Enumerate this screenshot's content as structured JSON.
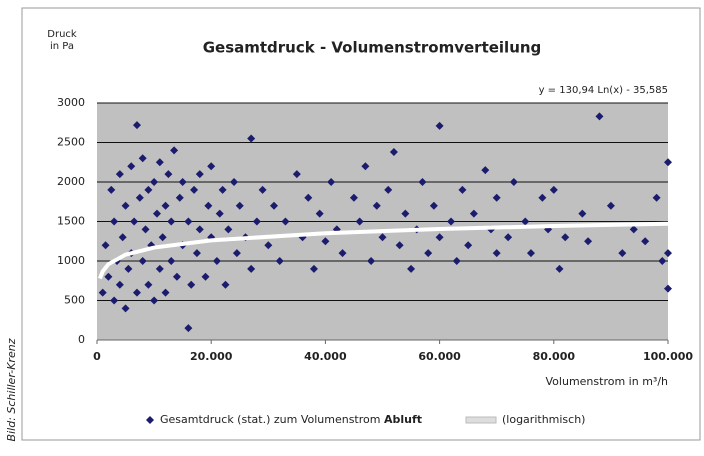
{
  "chart_data": {
    "type": "scatter",
    "title": "Gesamtdruck - Volumenstromverteilung",
    "y_label": [
      "Druck",
      "in Pa"
    ],
    "x_label": "Volumenstrom in m³/h",
    "annotation": "y = 130,94 Ln(x) - 35,585",
    "credit": "Bild: Schiller-Krenz",
    "xlim": [
      0,
      100000
    ],
    "ylim": [
      0,
      3000
    ],
    "xticks": [
      0,
      {
        "value": 20000,
        "label": "20.000"
      },
      {
        "value": 40000,
        "label": "40.000"
      },
      {
        "value": 60000,
        "label": "60.000"
      },
      {
        "value": 80000,
        "label": "80.000"
      },
      {
        "value": 100000,
        "label": "100.000"
      }
    ],
    "yticks": [
      0,
      500,
      1000,
      1500,
      2000,
      2500,
      3000
    ],
    "grid": true,
    "background": "#c0c0c0",
    "series": [
      {
        "name": "Gesamtdruck (stat.) zum Volumenstrom",
        "name_bold": "Abluft",
        "color": "#1c1c6e",
        "x": [
          1000,
          1500,
          2000,
          2500,
          3000,
          3000,
          3500,
          4000,
          4000,
          4500,
          5000,
          5000,
          5500,
          6000,
          6000,
          6500,
          7000,
          7000,
          7500,
          8000,
          8000,
          8500,
          9000,
          9000,
          9500,
          10000,
          10000,
          10500,
          11000,
          11000,
          11500,
          12000,
          12000,
          12500,
          13000,
          13000,
          13500,
          14000,
          14500,
          15000,
          15000,
          16000,
          16000,
          16500,
          17000,
          17500,
          18000,
          18000,
          19000,
          19500,
          20000,
          20000,
          21000,
          21500,
          22000,
          22500,
          23000,
          24000,
          24500,
          25000,
          26000,
          27000,
          27000,
          28000,
          29000,
          30000,
          31000,
          32000,
          33000,
          35000,
          36000,
          37000,
          38000,
          39000,
          40000,
          41000,
          42000,
          43000,
          45000,
          46000,
          47000,
          48000,
          49000,
          50000,
          51000,
          52000,
          53000,
          54000,
          55000,
          56000,
          57000,
          58000,
          59000,
          60000,
          60000,
          62000,
          63000,
          64000,
          65000,
          66000,
          68000,
          69000,
          70000,
          70000,
          72000,
          73000,
          75000,
          76000,
          78000,
          79000,
          80000,
          81000,
          82000,
          85000,
          86000,
          88000,
          90000,
          92000,
          94000,
          96000,
          98000,
          99000,
          100000,
          100000,
          100000
        ],
        "values": [
          600,
          1200,
          800,
          1900,
          1500,
          500,
          1000,
          2100,
          700,
          1300,
          1700,
          400,
          900,
          2200,
          1100,
          1500,
          2720,
          600,
          1800,
          1000,
          2300,
          1400,
          700,
          1900,
          1200,
          2000,
          500,
          1600,
          900,
          2250,
          1300,
          1700,
          600,
          2100,
          1000,
          1500,
          2400,
          800,
          1800,
          1200,
          2000,
          150,
          1500,
          700,
          1900,
          1100,
          2100,
          1400,
          800,
          1700,
          1300,
          2200,
          1000,
          1600,
          1900,
          700,
          1400,
          2000,
          1100,
          1700,
          1300,
          2550,
          900,
          1500,
          1900,
          1200,
          1700,
          1000,
          1500,
          2100,
          1300,
          1800,
          900,
          1600,
          1250,
          2000,
          1400,
          1100,
          1800,
          1500,
          2200,
          1000,
          1700,
          1300,
          1900,
          2380,
          1200,
          1600,
          900,
          1400,
          2000,
          1100,
          1700,
          2710,
          1300,
          1500,
          1000,
          1900,
          1200,
          1600,
          2150,
          1400,
          1100,
          1800,
          1300,
          2000,
          1500,
          1100,
          1800,
          1400,
          1900,
          900,
          1300,
          1600,
          1250,
          2830,
          1700,
          1100,
          1400,
          1250,
          1800,
          1000,
          2250,
          650,
          1100
        ]
      },
      {
        "name": "(logarithmisch)",
        "type": "line",
        "color": "#ffffff",
        "x": [
          500,
          1000,
          2000,
          5000,
          10000,
          20000,
          40000,
          60000,
          80000,
          100000
        ],
        "values": [
          778,
          869,
          960,
          1080,
          1170,
          1261,
          1352,
          1405,
          1443,
          1472
        ]
      }
    ]
  }
}
